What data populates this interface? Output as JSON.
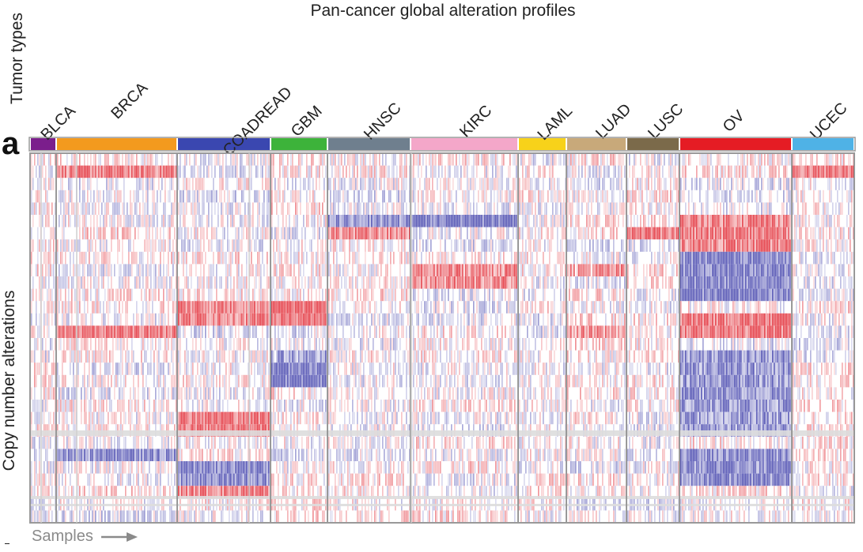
{
  "figure": {
    "title": "Pan-cancer global alteration profiles",
    "panel_label": "a",
    "tumor_axis_label": "Tumor types",
    "cna_axis_label": "Copy number alterations",
    "samples_label": "Samples"
  },
  "colors": {
    "gain": "#e0202a",
    "loss": "#3a3aa8",
    "frame": "#999999",
    "band": "#dddddd"
  },
  "chart_data": {
    "type": "heatmap",
    "title": "Pan-cancer global alteration profiles",
    "xlabel": "Samples",
    "ylabel": "Copy number alterations",
    "value_encoding": "red = copy number gain, blue = copy number loss, white = no alteration",
    "tumor_types": [
      {
        "name": "BLCA",
        "color": "#7b1e8c"
      },
      {
        "name": "BRCA",
        "color": "#f39a1e"
      },
      {
        "name": "COADREAD",
        "color": "#3a47b0"
      },
      {
        "name": "GBM",
        "color": "#3db33a"
      },
      {
        "name": "HNSC",
        "color": "#6f7f8e"
      },
      {
        "name": "KIRC",
        "color": "#f4a7c9"
      },
      {
        "name": "LAML",
        "color": "#f7d21a"
      },
      {
        "name": "LUAD",
        "color": "#c8a97a"
      },
      {
        "name": "LUSC",
        "color": "#7b6a4a"
      },
      {
        "name": "OV",
        "color": "#e51c24"
      },
      {
        "name": "UCEC",
        "color": "#4fb2e6"
      }
    ]
  }
}
